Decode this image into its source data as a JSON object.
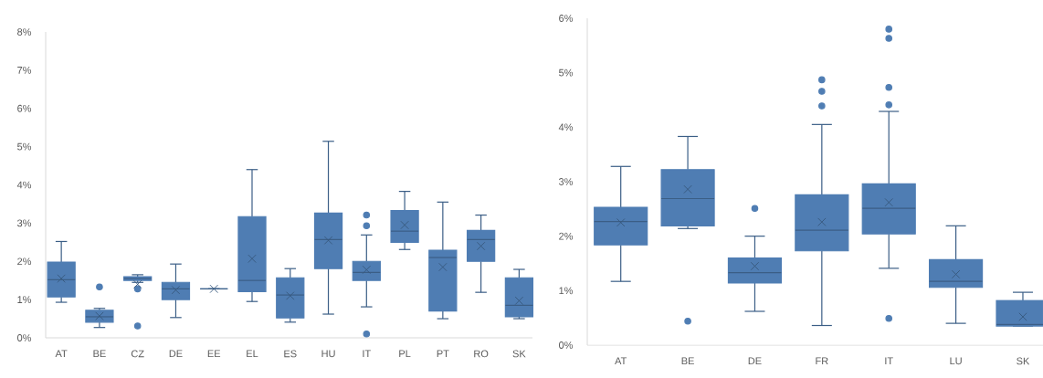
{
  "chart_data": [
    {
      "type": "box",
      "color": "#4f7db3",
      "categories": [
        "AT",
        "BE",
        "CZ",
        "DE",
        "EE",
        "EL",
        "ES",
        "HU",
        "IT",
        "PL",
        "PT",
        "RO",
        "SK"
      ],
      "boxes": [
        {
          "low": 0.93,
          "q1": 1.07,
          "median": 1.52,
          "q3": 1.98,
          "high": 2.52,
          "mean": 1.55
        },
        {
          "low": 0.27,
          "q1": 0.41,
          "median": 0.55,
          "q3": 0.72,
          "high": 0.77,
          "mean": 0.57,
          "outliers": [
            1.33
          ]
        },
        {
          "low": 1.45,
          "q1": 1.5,
          "median": 1.55,
          "q3": 1.6,
          "high": 1.65,
          "mean": 1.4,
          "outliers": [
            1.28,
            0.31
          ]
        },
        {
          "low": 0.53,
          "q1": 1.0,
          "median": 1.28,
          "q3": 1.45,
          "high": 1.93,
          "mean": 1.25
        },
        {
          "low": 1.28,
          "q1": 1.28,
          "median": 1.28,
          "q3": 1.28,
          "high": 1.28,
          "mean": 1.28
        },
        {
          "low": 0.95,
          "q1": 1.21,
          "median": 1.5,
          "q3": 3.17,
          "high": 4.4,
          "mean": 2.07
        },
        {
          "low": 0.41,
          "q1": 0.52,
          "median": 1.12,
          "q3": 1.57,
          "high": 1.81,
          "mean": 1.1
        },
        {
          "low": 0.62,
          "q1": 1.81,
          "median": 2.57,
          "q3": 3.26,
          "high": 5.14,
          "mean": 2.55
        },
        {
          "low": 0.81,
          "q1": 1.5,
          "median": 1.71,
          "q3": 2.0,
          "high": 2.69,
          "mean": 1.78,
          "outliers": [
            3.21,
            2.93,
            0.1
          ]
        },
        {
          "low": 2.31,
          "q1": 2.5,
          "median": 2.79,
          "q3": 3.33,
          "high": 3.83,
          "mean": 2.95
        },
        {
          "low": 0.5,
          "q1": 0.7,
          "median": 2.1,
          "q3": 2.29,
          "high": 3.55,
          "mean": 1.85
        },
        {
          "low": 1.19,
          "q1": 2.0,
          "median": 2.57,
          "q3": 2.81,
          "high": 3.21,
          "mean": 2.4
        },
        {
          "low": 0.5,
          "q1": 0.55,
          "median": 0.85,
          "q3": 1.57,
          "high": 1.79,
          "mean": 0.97
        }
      ],
      "ylim": [
        0,
        8
      ],
      "yticks": [
        {
          "value": 0,
          "label": "0%"
        },
        {
          "value": 1,
          "label": "1%"
        },
        {
          "value": 2,
          "label": "2%"
        },
        {
          "value": 3,
          "label": "3%"
        },
        {
          "value": 4,
          "label": "4%"
        },
        {
          "value": 5,
          "label": "5%"
        },
        {
          "value": 6,
          "label": "6%"
        },
        {
          "value": 7,
          "label": "7%"
        },
        {
          "value": 8,
          "label": "8%"
        }
      ]
    },
    {
      "type": "box",
      "color": "#4f7db3",
      "categories": [
        "AT",
        "BE",
        "DE",
        "FR",
        "IT",
        "LU",
        "SK"
      ],
      "boxes": [
        {
          "low": 1.17,
          "q1": 1.84,
          "median": 2.27,
          "q3": 2.53,
          "high": 3.28,
          "mean": 2.25
        },
        {
          "low": 2.14,
          "q1": 2.19,
          "median": 2.69,
          "q3": 3.22,
          "high": 3.83,
          "mean": 2.86,
          "outliers": [
            0.44
          ]
        },
        {
          "low": 0.62,
          "q1": 1.14,
          "median": 1.33,
          "q3": 1.6,
          "high": 2.0,
          "mean": 1.45,
          "outliers": [
            2.51
          ]
        },
        {
          "low": 0.36,
          "q1": 1.73,
          "median": 2.11,
          "q3": 2.76,
          "high": 4.05,
          "mean": 2.26,
          "outliers": [
            4.87,
            4.66,
            4.39
          ]
        },
        {
          "low": 1.41,
          "q1": 2.04,
          "median": 2.51,
          "q3": 2.96,
          "high": 4.29,
          "mean": 2.62,
          "outliers": [
            5.8,
            5.63,
            4.73,
            4.41,
            0.49
          ]
        },
        {
          "low": 0.4,
          "q1": 1.06,
          "median": 1.17,
          "q3": 1.57,
          "high": 2.19,
          "mean": 1.3
        },
        {
          "low": 0.35,
          "q1": 0.35,
          "median": 0.38,
          "q3": 0.82,
          "high": 0.97,
          "mean": 0.52
        }
      ],
      "ylim": [
        0,
        6
      ],
      "yticks": [
        {
          "value": 0,
          "label": "0%"
        },
        {
          "value": 1,
          "label": "1%"
        },
        {
          "value": 2,
          "label": "2%"
        },
        {
          "value": 3,
          "label": "3%"
        },
        {
          "value": 4,
          "label": "4%"
        },
        {
          "value": 5,
          "label": "5%"
        },
        {
          "value": 6,
          "label": "6%"
        }
      ]
    }
  ]
}
